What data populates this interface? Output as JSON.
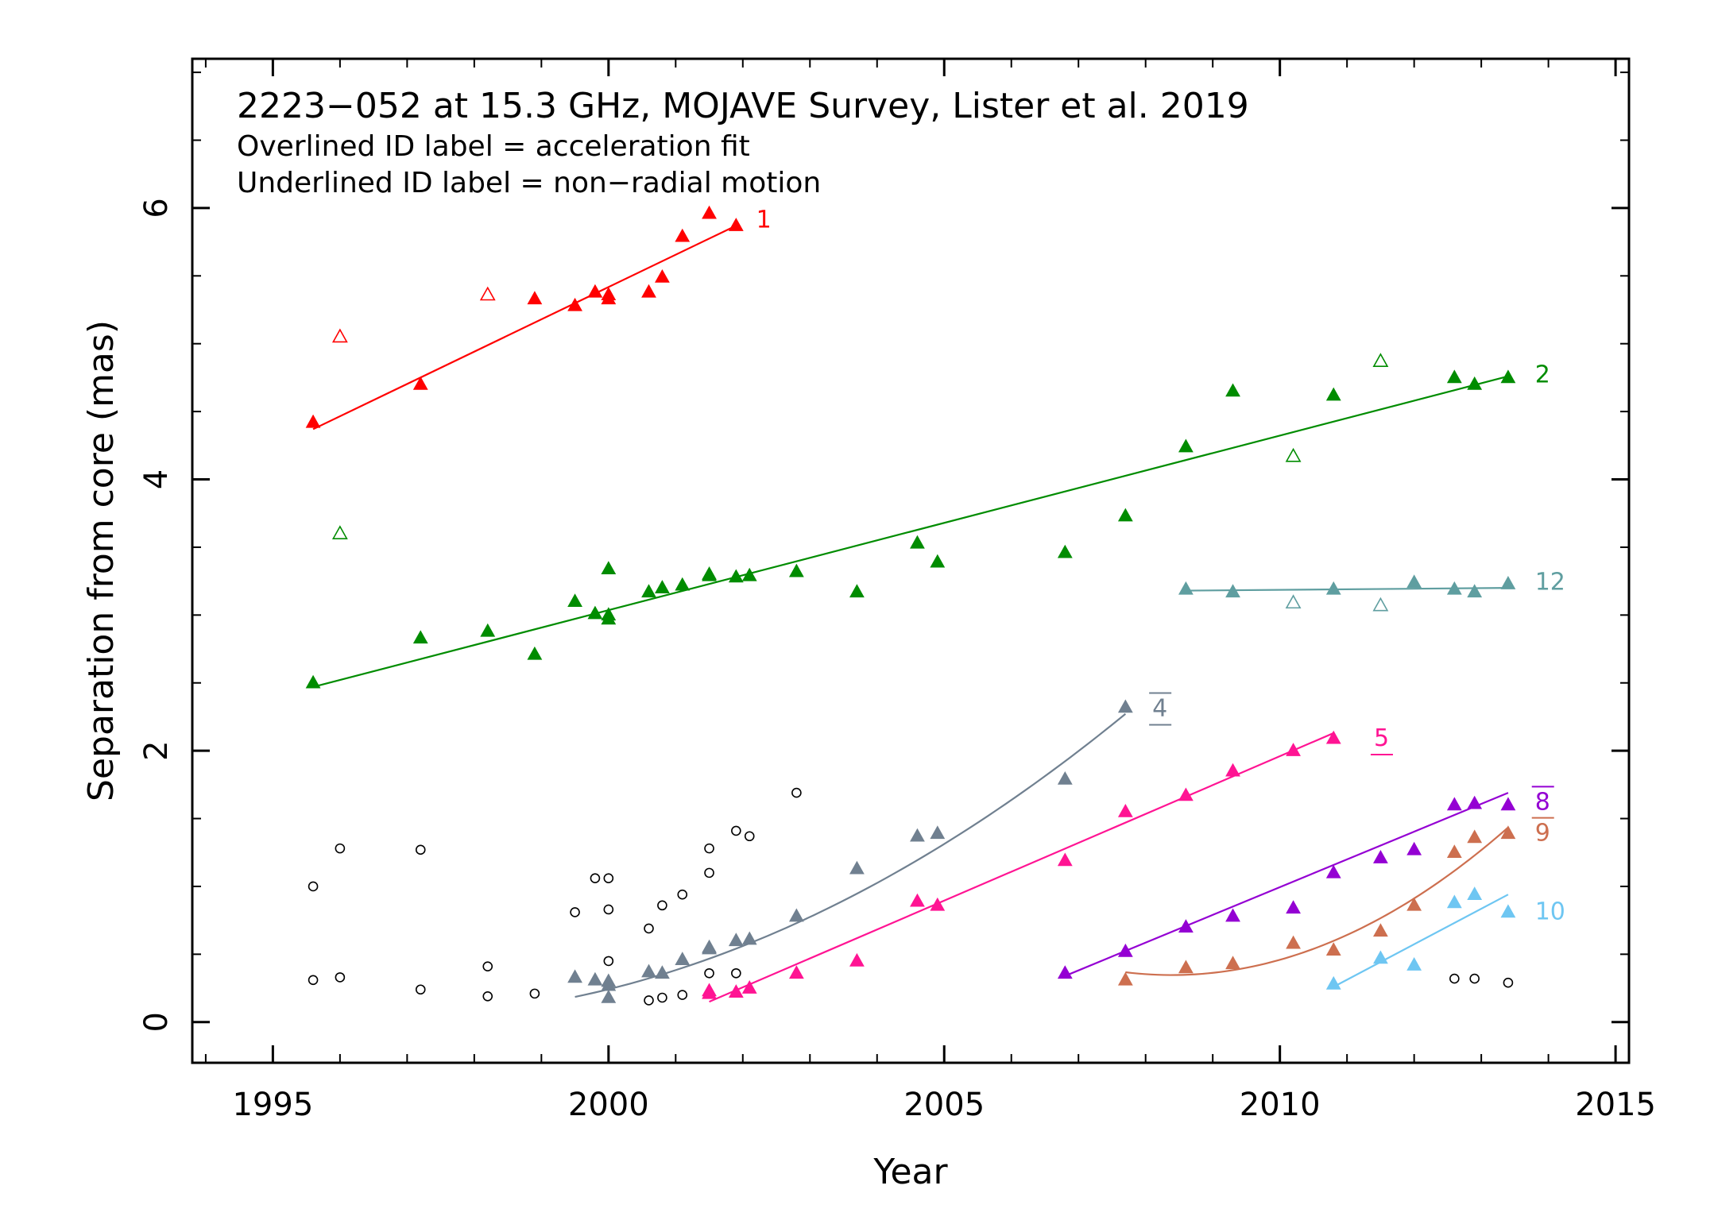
{
  "chart_data": {
    "type": "scatter",
    "title": "2223−052 at 15.3 GHz, MOJAVE Survey, Lister et al. 2019",
    "notes": [
      "Overlined ID label = acceleration fit",
      "Underlined ID label = non−radial motion"
    ],
    "xlabel": "Year",
    "ylabel": "Separation from core (mas)",
    "xlim": [
      1993.8,
      2015.2
    ],
    "ylim": [
      -0.3,
      7.1
    ],
    "x_ticks": [
      1995,
      2000,
      2005,
      2010,
      2015
    ],
    "y_ticks": [
      0,
      2,
      4,
      6
    ],
    "grid": false,
    "legend": "none",
    "series": [
      {
        "name": "1",
        "color": "#ff0000",
        "label_style": "plain",
        "points": [
          [
            1995.6,
            4.42
          ],
          [
            1997.2,
            4.7
          ],
          [
            1998.9,
            5.33
          ],
          [
            1999.5,
            5.28
          ],
          [
            1999.8,
            5.38
          ],
          [
            2000.0,
            5.36
          ],
          [
            2000.0,
            5.33
          ],
          [
            2000.6,
            5.38
          ],
          [
            2000.8,
            5.49
          ],
          [
            2001.1,
            5.79
          ],
          [
            2001.5,
            5.96
          ],
          [
            2001.9,
            5.87
          ]
        ],
        "open_points": [
          [
            1996.0,
            5.05
          ],
          [
            1998.2,
            5.36
          ]
        ],
        "fit": {
          "kind": "linear",
          "x": [
            1995.6,
            2001.9
          ],
          "y": [
            4.37,
            5.87
          ]
        },
        "label_pos": [
          2002.2,
          5.92
        ]
      },
      {
        "name": "2",
        "color": "#008c00",
        "label_style": "plain",
        "points": [
          [
            1995.6,
            2.5
          ],
          [
            1997.2,
            2.83
          ],
          [
            1998.2,
            2.88
          ],
          [
            1998.9,
            2.71
          ],
          [
            1999.5,
            3.1
          ],
          [
            1999.8,
            3.01
          ],
          [
            2000.0,
            3.0
          ],
          [
            2000.0,
            2.97
          ],
          [
            2000.0,
            3.34
          ],
          [
            2000.6,
            3.17
          ],
          [
            2000.8,
            3.2
          ],
          [
            2001.1,
            3.22
          ],
          [
            2001.5,
            3.3
          ],
          [
            2001.5,
            3.29
          ],
          [
            2001.9,
            3.28
          ],
          [
            2002.1,
            3.29
          ],
          [
            2002.8,
            3.32
          ],
          [
            2003.7,
            3.17
          ],
          [
            2004.6,
            3.53
          ],
          [
            2004.9,
            3.39
          ],
          [
            2006.8,
            3.46
          ],
          [
            2007.7,
            3.73
          ],
          [
            2008.6,
            4.24
          ],
          [
            2009.3,
            4.65
          ],
          [
            2010.8,
            4.62
          ],
          [
            2012.6,
            4.75
          ],
          [
            2012.9,
            4.7
          ],
          [
            2013.4,
            4.75
          ]
        ],
        "open_points": [
          [
            1996.0,
            3.6
          ],
          [
            2010.2,
            4.17
          ],
          [
            2011.5,
            4.87
          ]
        ],
        "fit": {
          "kind": "linear",
          "x": [
            1995.6,
            2013.4
          ],
          "y": [
            2.47,
            4.76
          ]
        },
        "label_pos": [
          2013.8,
          4.78
        ]
      },
      {
        "name": "4",
        "color": "#708090",
        "label_style": "overline-underline",
        "points": [
          [
            1999.5,
            0.33
          ],
          [
            1999.8,
            0.31
          ],
          [
            2000.0,
            0.3
          ],
          [
            2000.0,
            0.27
          ],
          [
            2000.0,
            0.18
          ],
          [
            2000.6,
            0.37
          ],
          [
            2000.8,
            0.36
          ],
          [
            2001.1,
            0.46
          ],
          [
            2001.5,
            0.55
          ],
          [
            2001.5,
            0.54
          ],
          [
            2001.9,
            0.6
          ],
          [
            2002.1,
            0.61
          ],
          [
            2002.8,
            0.78
          ],
          [
            2003.7,
            1.13
          ],
          [
            2004.6,
            1.37
          ],
          [
            2004.9,
            1.39
          ],
          [
            2006.8,
            1.79
          ],
          [
            2007.7,
            2.32
          ]
        ],
        "open_points": [],
        "fit": {
          "kind": "quadratic",
          "x": [
            1999.5,
            2002.5,
            2005.5,
            2007.7
          ],
          "y": [
            0.18,
            0.68,
            1.45,
            2.28
          ]
        },
        "label_pos": [
          2008.1,
          2.32
        ]
      },
      {
        "name": "5",
        "color": "#ff1493",
        "label_style": "underline",
        "points": [
          [
            2001.5,
            0.23
          ],
          [
            2001.5,
            0.21
          ],
          [
            2001.9,
            0.22
          ],
          [
            2002.1,
            0.25
          ],
          [
            2002.8,
            0.36
          ],
          [
            2003.7,
            0.45
          ],
          [
            2004.6,
            0.89
          ],
          [
            2004.9,
            0.86
          ],
          [
            2006.8,
            1.19
          ],
          [
            2007.7,
            1.55
          ],
          [
            2008.6,
            1.67
          ],
          [
            2009.3,
            1.85
          ],
          [
            2010.2,
            2.0
          ],
          [
            2010.8,
            2.09
          ]
        ],
        "open_points": [],
        "fit": {
          "kind": "linear",
          "x": [
            2001.5,
            2010.8
          ],
          "y": [
            0.15,
            2.13
          ]
        },
        "label_pos": [
          2011.4,
          2.1
        ]
      },
      {
        "name": "8",
        "color": "#9400d3",
        "label_style": "overline",
        "points": [
          [
            2006.8,
            0.36
          ],
          [
            2007.7,
            0.52
          ],
          [
            2008.6,
            0.7
          ],
          [
            2009.3,
            0.78
          ],
          [
            2010.2,
            0.84
          ],
          [
            2010.8,
            1.1
          ],
          [
            2011.5,
            1.21
          ],
          [
            2012.0,
            1.27
          ],
          [
            2012.6,
            1.6
          ],
          [
            2012.9,
            1.61
          ],
          [
            2013.4,
            1.6
          ]
        ],
        "open_points": [],
        "fit": {
          "kind": "linear",
          "x": [
            2006.8,
            2013.4
          ],
          "y": [
            0.34,
            1.69
          ]
        },
        "label_pos": [
          2013.8,
          1.63
        ]
      },
      {
        "name": "9",
        "color": "#cd6f4f",
        "label_style": "overline",
        "points": [
          [
            2007.7,
            0.31
          ],
          [
            2008.6,
            0.4
          ],
          [
            2009.3,
            0.43
          ],
          [
            2010.2,
            0.58
          ],
          [
            2010.8,
            0.53
          ],
          [
            2011.5,
            0.67
          ],
          [
            2012.0,
            0.86
          ],
          [
            2012.6,
            1.25
          ],
          [
            2012.9,
            1.36
          ],
          [
            2013.4,
            1.39
          ]
        ],
        "open_points": [],
        "fit": {
          "kind": "quadratic",
          "x": [
            2007.7,
            2009.3,
            2011.5,
            2013.4
          ],
          "y": [
            0.36,
            0.4,
            0.75,
            1.44
          ]
        },
        "label_pos": [
          2013.8,
          1.4
        ]
      },
      {
        "name": "10",
        "color": "#6ec6f2",
        "label_style": "plain",
        "points": [
          [
            2010.8,
            0.28
          ],
          [
            2011.5,
            0.47
          ],
          [
            2012.0,
            0.42
          ],
          [
            2012.6,
            0.88
          ],
          [
            2012.9,
            0.94
          ],
          [
            2013.4,
            0.81
          ]
        ],
        "open_points": [],
        "fit": {
          "kind": "linear",
          "x": [
            2010.8,
            2013.4
          ],
          "y": [
            0.26,
            0.94
          ]
        },
        "label_pos": [
          2013.8,
          0.82
        ]
      },
      {
        "name": "12",
        "color": "#5f9ea0",
        "label_style": "plain",
        "points": [
          [
            2008.6,
            3.19
          ],
          [
            2009.3,
            3.17
          ],
          [
            2010.8,
            3.19
          ],
          [
            2012.0,
            3.24
          ],
          [
            2012.6,
            3.19
          ],
          [
            2012.9,
            3.17
          ],
          [
            2013.4,
            3.23
          ]
        ],
        "open_points": [
          [
            2010.2,
            3.09
          ],
          [
            2011.5,
            3.07
          ]
        ],
        "fit": {
          "kind": "linear",
          "x": [
            2008.6,
            2013.4
          ],
          "y": [
            3.18,
            3.2
          ]
        },
        "label_pos": [
          2013.8,
          3.25
        ]
      }
    ],
    "unassigned": {
      "color": "#000000",
      "points": [
        [
          1995.6,
          1.0
        ],
        [
          1995.6,
          0.31
        ],
        [
          1996.0,
          1.28
        ],
        [
          1996.0,
          0.33
        ],
        [
          1997.2,
          1.27
        ],
        [
          1997.2,
          0.24
        ],
        [
          1998.2,
          0.41
        ],
        [
          1998.2,
          0.19
        ],
        [
          1998.9,
          0.21
        ],
        [
          1999.5,
          0.81
        ],
        [
          1999.8,
          1.06
        ],
        [
          2000.0,
          1.06
        ],
        [
          2000.0,
          0.83
        ],
        [
          2000.0,
          0.45
        ],
        [
          2000.6,
          0.69
        ],
        [
          2000.6,
          0.16
        ],
        [
          2000.8,
          0.86
        ],
        [
          2000.8,
          0.18
        ],
        [
          2001.1,
          0.94
        ],
        [
          2001.1,
          0.2
        ],
        [
          2001.5,
          1.28
        ],
        [
          2001.5,
          1.1
        ],
        [
          2001.5,
          0.36
        ],
        [
          2001.9,
          1.41
        ],
        [
          2001.9,
          0.36
        ],
        [
          2002.1,
          1.37
        ],
        [
          2002.8,
          1.69
        ],
        [
          2012.6,
          0.32
        ],
        [
          2012.9,
          0.32
        ],
        [
          2013.4,
          0.29
        ]
      ]
    }
  }
}
